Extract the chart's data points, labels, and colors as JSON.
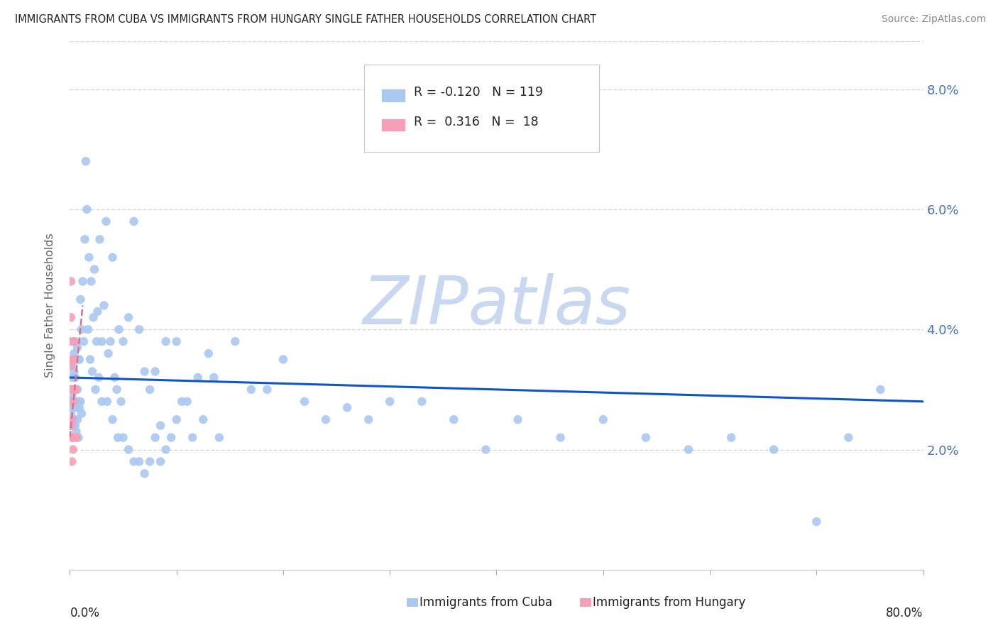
{
  "title": "IMMIGRANTS FROM CUBA VS IMMIGRANTS FROM HUNGARY SINGLE FATHER HOUSEHOLDS CORRELATION CHART",
  "source": "Source: ZipAtlas.com",
  "ylabel": "Single Father Households",
  "xlim": [
    0.0,
    0.8
  ],
  "ylim": [
    0.0,
    0.088
  ],
  "cuba_color": "#aac8f0",
  "hungary_color": "#f5a0b8",
  "trend_cuba_color": "#1055c8",
  "trend_hungary_color": "#d87090",
  "watermark_text": "ZIPatlas",
  "watermark_color": "#c8d8f0",
  "background_color": "#ffffff",
  "grid_color": "#d0d8e8",
  "axis_label_color": "#4472c4",
  "text_color": "#222222",
  "source_color": "#888888",
  "legend_R1": "-0.120",
  "legend_N1": "119",
  "legend_R2": "0.316",
  "legend_N2": "18",
  "right_yticks": [
    0.08,
    0.06,
    0.04,
    0.02
  ],
  "right_ytick_labels": [
    "8.0%",
    "6.0%",
    "4.0%",
    "2.0%"
  ],
  "cuba_x": [
    0.001,
    0.001,
    0.001,
    0.001,
    0.002,
    0.002,
    0.002,
    0.002,
    0.002,
    0.003,
    0.003,
    0.003,
    0.003,
    0.004,
    0.004,
    0.004,
    0.004,
    0.005,
    0.005,
    0.005,
    0.005,
    0.006,
    0.006,
    0.006,
    0.006,
    0.007,
    0.007,
    0.007,
    0.008,
    0.008,
    0.008,
    0.009,
    0.009,
    0.01,
    0.01,
    0.011,
    0.011,
    0.012,
    0.013,
    0.014,
    0.015,
    0.016,
    0.017,
    0.018,
    0.019,
    0.02,
    0.021,
    0.022,
    0.023,
    0.024,
    0.025,
    0.026,
    0.027,
    0.028,
    0.03,
    0.032,
    0.034,
    0.036,
    0.038,
    0.04,
    0.042,
    0.044,
    0.046,
    0.048,
    0.05,
    0.055,
    0.06,
    0.065,
    0.07,
    0.075,
    0.08,
    0.085,
    0.09,
    0.1,
    0.11,
    0.12,
    0.13,
    0.14,
    0.155,
    0.17,
    0.185,
    0.2,
    0.22,
    0.24,
    0.26,
    0.28,
    0.3,
    0.33,
    0.36,
    0.39,
    0.42,
    0.46,
    0.5,
    0.54,
    0.58,
    0.62,
    0.66,
    0.7,
    0.73,
    0.76,
    0.03,
    0.035,
    0.04,
    0.045,
    0.05,
    0.055,
    0.06,
    0.065,
    0.07,
    0.075,
    0.08,
    0.085,
    0.09,
    0.095,
    0.1,
    0.105,
    0.115,
    0.125,
    0.135
  ],
  "cuba_y": [
    0.03,
    0.028,
    0.026,
    0.024,
    0.032,
    0.029,
    0.027,
    0.025,
    0.022,
    0.034,
    0.03,
    0.027,
    0.024,
    0.036,
    0.033,
    0.028,
    0.025,
    0.038,
    0.032,
    0.028,
    0.024,
    0.035,
    0.03,
    0.027,
    0.023,
    0.037,
    0.03,
    0.025,
    0.035,
    0.028,
    0.022,
    0.035,
    0.027,
    0.045,
    0.028,
    0.04,
    0.026,
    0.048,
    0.038,
    0.055,
    0.068,
    0.06,
    0.04,
    0.052,
    0.035,
    0.048,
    0.033,
    0.042,
    0.05,
    0.03,
    0.038,
    0.043,
    0.032,
    0.055,
    0.038,
    0.044,
    0.058,
    0.036,
    0.038,
    0.052,
    0.032,
    0.03,
    0.04,
    0.028,
    0.038,
    0.042,
    0.058,
    0.04,
    0.033,
    0.03,
    0.033,
    0.024,
    0.038,
    0.038,
    0.028,
    0.032,
    0.036,
    0.022,
    0.038,
    0.03,
    0.03,
    0.035,
    0.028,
    0.025,
    0.027,
    0.025,
    0.028,
    0.028,
    0.025,
    0.02,
    0.025,
    0.022,
    0.025,
    0.022,
    0.02,
    0.022,
    0.02,
    0.008,
    0.022,
    0.03,
    0.028,
    0.028,
    0.025,
    0.022,
    0.022,
    0.02,
    0.018,
    0.018,
    0.016,
    0.018,
    0.022,
    0.018,
    0.02,
    0.022,
    0.025,
    0.028,
    0.022,
    0.025,
    0.032
  ],
  "hungary_x": [
    0.001,
    0.001,
    0.001,
    0.001,
    0.001,
    0.002,
    0.002,
    0.002,
    0.002,
    0.002,
    0.003,
    0.003,
    0.003,
    0.004,
    0.004,
    0.005,
    0.005,
    0.006
  ],
  "hungary_y": [
    0.048,
    0.042,
    0.038,
    0.034,
    0.024,
    0.035,
    0.03,
    0.025,
    0.022,
    0.018,
    0.035,
    0.028,
    0.02,
    0.038,
    0.03,
    0.03,
    0.022,
    0.022
  ]
}
